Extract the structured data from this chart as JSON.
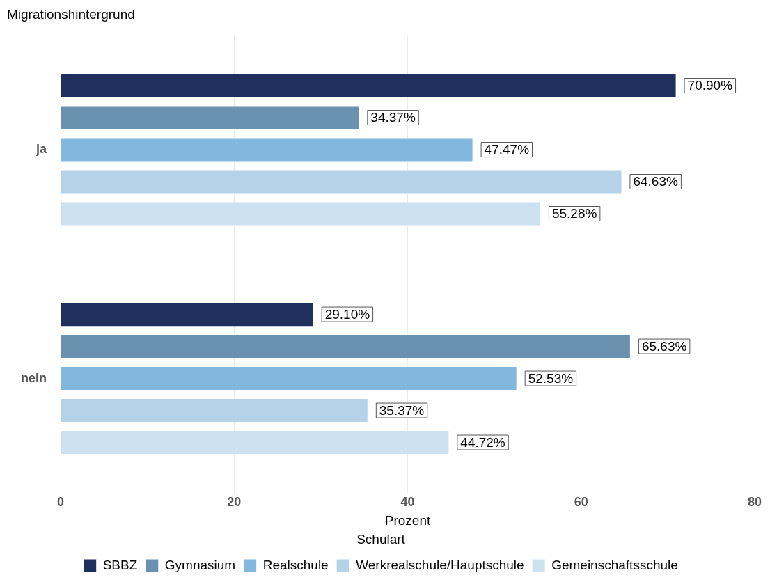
{
  "chart_data": {
    "type": "bar",
    "orientation": "horizontal",
    "title": "Migrationshintergrund",
    "xlabel": "Prozent",
    "legend_title": "Schulart",
    "categories": [
      "ja",
      "nein"
    ],
    "series": [
      {
        "name": "SBBZ",
        "color": "#1f2f5e",
        "values": [
          70.9,
          29.1
        ],
        "value_labels": [
          "70.90%",
          "29.10%"
        ]
      },
      {
        "name": "Gymnasium",
        "color": "#6a92b0",
        "values": [
          34.37,
          65.63
        ],
        "value_labels": [
          "34.37%",
          "65.63%"
        ]
      },
      {
        "name": "Realschule",
        "color": "#82b8dd",
        "values": [
          47.47,
          52.53
        ],
        "value_labels": [
          "47.47%",
          "52.53%"
        ]
      },
      {
        "name": "Werkrealschule/Hauptschule",
        "color": "#b5d3e8",
        "values": [
          64.63,
          35.37
        ],
        "value_labels": [
          "64.63%",
          "35.37%"
        ]
      },
      {
        "name": "Gemeinschaftsschule",
        "color": "#cde2f0",
        "values": [
          55.28,
          44.72
        ],
        "value_labels": [
          "55.28%",
          "44.72%"
        ]
      }
    ],
    "xlim": [
      0,
      80
    ],
    "xticks": [
      0,
      20,
      40,
      60,
      80
    ],
    "grid": "x",
    "legend": "bottom"
  }
}
